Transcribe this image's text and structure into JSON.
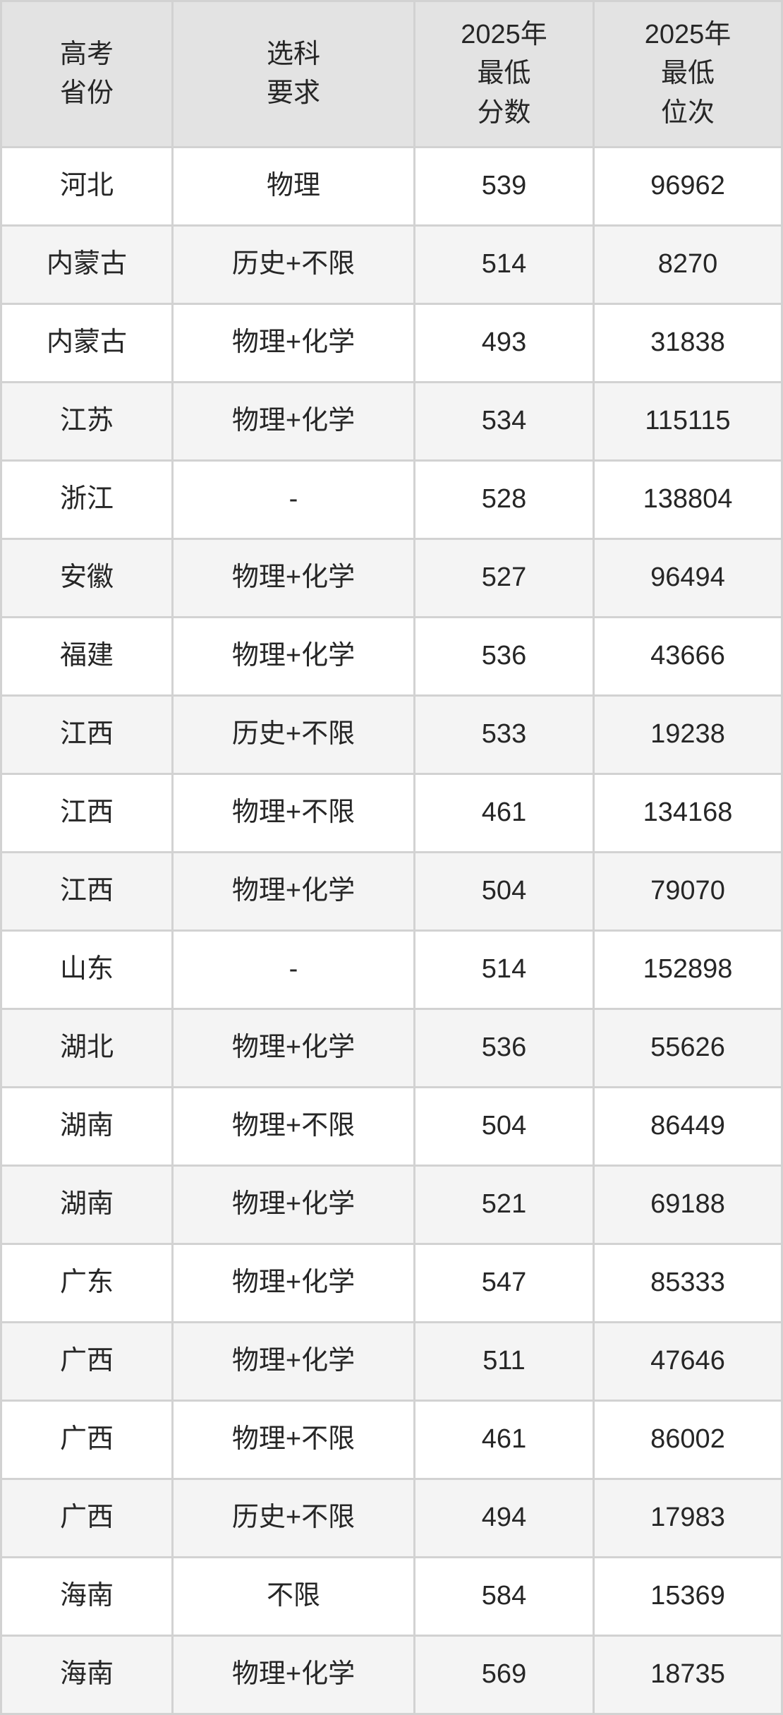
{
  "chart_data": {
    "type": "table",
    "title": "",
    "columns": [
      {
        "id": "province",
        "label": "高考\n省份"
      },
      {
        "id": "requirement",
        "label": "选科\n要求"
      },
      {
        "id": "min_score",
        "label": "2025年\n最低\n分数"
      },
      {
        "id": "min_rank",
        "label": "2025年\n最低\n位次"
      }
    ],
    "rows": [
      {
        "province": "河北",
        "requirement": "物理",
        "min_score": 539,
        "min_rank": 96962
      },
      {
        "province": "内蒙古",
        "requirement": "历史+不限",
        "min_score": 514,
        "min_rank": 8270
      },
      {
        "province": "内蒙古",
        "requirement": "物理+化学",
        "min_score": 493,
        "min_rank": 31838
      },
      {
        "province": "江苏",
        "requirement": "物理+化学",
        "min_score": 534,
        "min_rank": 115115
      },
      {
        "province": "浙江",
        "requirement": "-",
        "min_score": 528,
        "min_rank": 138804
      },
      {
        "province": "安徽",
        "requirement": "物理+化学",
        "min_score": 527,
        "min_rank": 96494
      },
      {
        "province": "福建",
        "requirement": "物理+化学",
        "min_score": 536,
        "min_rank": 43666
      },
      {
        "province": "江西",
        "requirement": "历史+不限",
        "min_score": 533,
        "min_rank": 19238
      },
      {
        "province": "江西",
        "requirement": "物理+不限",
        "min_score": 461,
        "min_rank": 134168
      },
      {
        "province": "江西",
        "requirement": "物理+化学",
        "min_score": 504,
        "min_rank": 79070
      },
      {
        "province": "山东",
        "requirement": "-",
        "min_score": 514,
        "min_rank": 152898
      },
      {
        "province": "湖北",
        "requirement": "物理+化学",
        "min_score": 536,
        "min_rank": 55626
      },
      {
        "province": "湖南",
        "requirement": "物理+不限",
        "min_score": 504,
        "min_rank": 86449
      },
      {
        "province": "湖南",
        "requirement": "物理+化学",
        "min_score": 521,
        "min_rank": 69188
      },
      {
        "province": "广东",
        "requirement": "物理+化学",
        "min_score": 547,
        "min_rank": 85333
      },
      {
        "province": "广西",
        "requirement": "物理+化学",
        "min_score": 511,
        "min_rank": 47646
      },
      {
        "province": "广西",
        "requirement": "物理+不限",
        "min_score": 461,
        "min_rank": 86002
      },
      {
        "province": "广西",
        "requirement": "历史+不限",
        "min_score": 494,
        "min_rank": 17983
      },
      {
        "province": "海南",
        "requirement": "不限",
        "min_score": 584,
        "min_rank": 15369
      },
      {
        "province": "海南",
        "requirement": "物理+化学",
        "min_score": 569,
        "min_rank": 18735
      }
    ],
    "layout": {
      "grid": true,
      "zebra_striping": true,
      "header_lines_col1": 2,
      "header_lines_col3": 3
    }
  },
  "colors": {
    "grid": "#d2d2d2",
    "header_bg": "#e3e3e3",
    "row_bg": "#ffffff",
    "row_alt_bg": "#f4f4f4",
    "text": "#262626"
  }
}
